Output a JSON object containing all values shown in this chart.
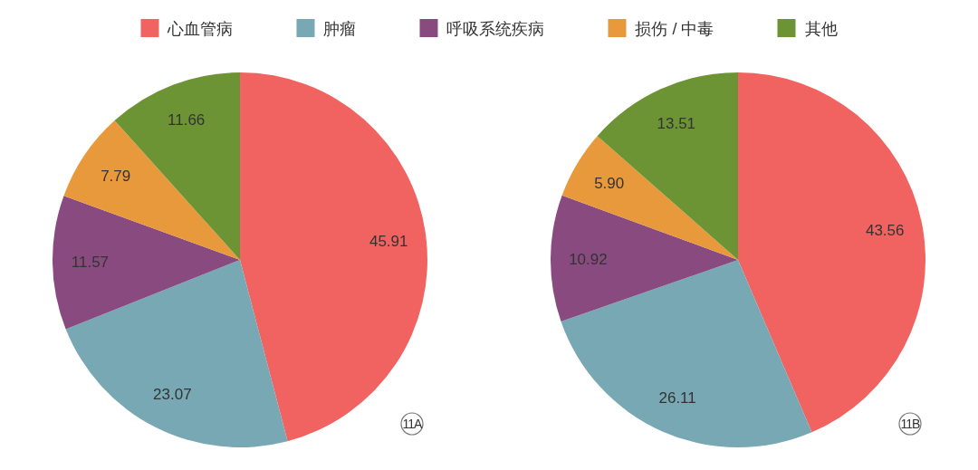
{
  "chart_data": [
    {
      "type": "pie",
      "categories": [
        "心血管病",
        "肿瘤",
        "呼吸系统疾病",
        "损伤 / 中毒",
        "其他"
      ],
      "values": [
        45.91,
        23.07,
        11.57,
        7.79,
        11.66
      ],
      "colors": [
        "#f06360",
        "#77a8b4",
        "#884a7f",
        "#e8993c",
        "#6c9434"
      ],
      "data_labels": true,
      "legend": "top",
      "annotations": [
        "11A"
      ]
    },
    {
      "type": "pie",
      "categories": [
        null,
        null,
        null,
        null,
        null
      ],
      "values": [
        43.56,
        26.11,
        10.92,
        5.9,
        13.51
      ],
      "value_labels": [
        "43.56",
        "26.11",
        "10.92",
        "5.90",
        "13.51"
      ],
      "colors": [
        "#f06360",
        "#77a8b4",
        "#884a7f",
        "#e8993c",
        "#6c9434"
      ],
      "annotations": [
        "11B"
      ]
    }
  ]
}
